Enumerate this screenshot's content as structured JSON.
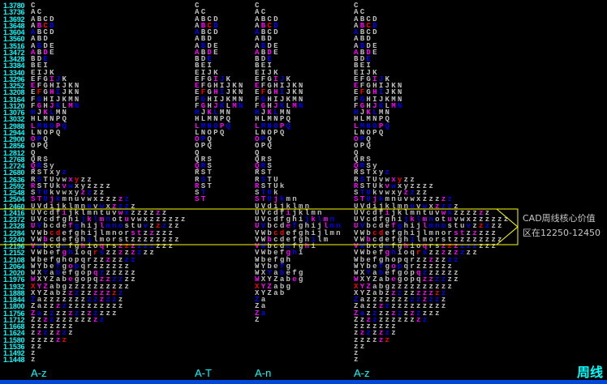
{
  "colors": {
    "background": "#000000",
    "price": "#00ffff",
    "letter": "#c0c0c0",
    "m": "#ff00ff",
    "b": "#0000ff",
    "r": "#ff0000",
    "highlight_box": "#ffff00",
    "bottom_bar": "#0048d8"
  },
  "annotation": {
    "line1": "CAD周线核心价值",
    "line2": "区在12250-12450"
  },
  "period_label": "周线",
  "chart_data": {
    "type": "market-profile",
    "price_levels": [
      "1.3780",
      "1.3736",
      "1.3692",
      "1.3648",
      "1.3604",
      "1.3560",
      "1.3516",
      "1.3472",
      "1.3428",
      "1.3384",
      "1.3340",
      "1.3296",
      "1.3252",
      "1.3208",
      "1.3164",
      "1.3120",
      "1.3076",
      "1.3032",
      "1.2988",
      "1.2944",
      "1.2900",
      "1.2856",
      "1.2812",
      "1.2768",
      "1.2724",
      "1.2680",
      "1.2636",
      "1.2592",
      "1.2548",
      "1.2504",
      "1.2460",
      "1.2416",
      "1.2372",
      "1.2328",
      "1.2284",
      "1.2240",
      "1.2196",
      "1.2152",
      "1.2108",
      "1.2064",
      "1.2020",
      "1.1976",
      "1.1932",
      "1.1888",
      "1.1844",
      "1.1800",
      "1.1756",
      "1.1712",
      "1.1668",
      "1.1624",
      "1.1580",
      "1.1536",
      "1.1492",
      "1.1448"
    ],
    "value_area_highlight": {
      "from": "1.2240",
      "to": "1.2416"
    },
    "profiles": [
      {
        "label": "A-z",
        "rows": [
          [
            "C",
            ""
          ],
          [
            "AC",
            ""
          ],
          [
            "ABCD",
            ""
          ],
          [
            "ABCD",
            ".mrb"
          ],
          [
            "ABCD",
            "b"
          ],
          [
            "ABD",
            ""
          ],
          [
            "ABDE",
            ".b"
          ],
          [
            "ABDE",
            "m.m"
          ],
          [
            "BDE",
            "..b"
          ],
          [
            "BEI",
            ""
          ],
          [
            "EIJK",
            ""
          ],
          [
            "EFGIJK",
            "...mb"
          ],
          [
            "EFGHIJKN",
            "m"
          ],
          [
            "EFGHIJKN",
            ".r.mb"
          ],
          [
            "FGHIJKMN",
            ".b"
          ],
          [
            "FGHJKLMN",
            ".m.mb.mb"
          ],
          [
            "HJKLMN",
            "b.mb"
          ],
          [
            "HLMNPQ",
            ""
          ],
          [
            "LMNOPQ",
            "mbbbmb"
          ],
          [
            "LNOPQ",
            ""
          ],
          [
            "OPQ",
            "mb"
          ],
          [
            "OPQ",
            ""
          ],
          [
            "Q",
            ""
          ],
          [
            "QRS",
            ""
          ],
          [
            "QRSy",
            "mb"
          ],
          [
            "RSTxyz",
            ".....b"
          ],
          [
            "RSTUvwxyzz",
            ".b....mr"
          ],
          [
            "RSTUkvwxyzzzz",
            "m....mb"
          ],
          [
            "STUkvwxyzzzz",
            ".bb.....mb"
          ],
          [
            "STUjkmnuvwxzzzzz",
            "mmbmb.........mb"
          ],
          [
            "UVdijklmnuvwxzzzz",
            ".........b.b.mbb"
          ],
          [
            "UVcdfijklmntuvwxzzzzzz",
            ".....m........mb....m"
          ],
          [
            "UVcdfghijklmnotuvwxzzzzzz",
            "........bmbmb..m"
          ],
          [
            "UVbcdefghijlmnostuvzzzzz",
            "mb....mb...mbbb...b.rb"
          ],
          [
            "VWbcdefghijlmnorstzzzzz",
            "...rr...........mm.m"
          ],
          [
            "VWbcdefghilmorstzzzzzzzz",
            "..m......b"
          ],
          [
            "VWbcdefghioqrszzzzzzzzz",
            "mb...b..m..m..mrmbbb"
          ],
          [
            "VWbefghioqrszzzzzzzz",
            ".....mb...rb..m.mb"
          ],
          [
            "Wbefghopqrzzzzzzz",
            "............m..bb"
          ],
          [
            "WYbefgopqrzzzzzz",
            "....b.mb"
          ],
          [
            "WXYabefgopqzzzzzz",
            "..b.b.....mb"
          ],
          [
            "WXYZabegopqzzzzzz",
            "m.....m....mmbb"
          ],
          [
            "XYZabgzzzzzzzzzz",
            "rmm"
          ],
          [
            "XYZabzzzzzzzzzz",
            "......mb..mmmrb"
          ],
          [
            "Zazzzzzzzzzzzzz",
            "b........bbmbb"
          ],
          [
            "Zazzzzzzzzzzzzz",
            "....mb"
          ],
          [
            "Zazzzzzzzzzzzz",
            "mb.b..mb.mb"
          ],
          [
            "Zzzzzzzzzzzz",
            "..mb......mb"
          ],
          [
            "zzzzzzz",
            ""
          ],
          [
            "zzzzzzz",
            ".mb.mb"
          ],
          [
            "zzzzzz",
            "....mr"
          ],
          [
            "zz",
            ""
          ],
          [
            "z",
            ""
          ],
          [
            "z",
            ""
          ]
        ]
      },
      {
        "label": "A-T",
        "rows": [
          [
            "C",
            ""
          ],
          [
            "AC",
            ""
          ],
          [
            "ABCD",
            ""
          ],
          [
            "ABCD",
            ".mrb"
          ],
          [
            "ABCD",
            "b"
          ],
          [
            "ABD",
            ""
          ],
          [
            "ABDE",
            ".b"
          ],
          [
            "ABDE",
            "m.m"
          ],
          [
            "BDE",
            "..b"
          ],
          [
            "BEI",
            ""
          ],
          [
            "EIJK",
            ""
          ],
          [
            "EFGIJK",
            "...mb"
          ],
          [
            "EFGHIJKN",
            "m"
          ],
          [
            "EFGHIJKN",
            ".r.mb"
          ],
          [
            "FGHIJKMN",
            ".b"
          ],
          [
            "FGHJKLMN",
            ".m.mb.mb"
          ],
          [
            "HJKLMN",
            "b.mb"
          ],
          [
            "HLMNPQ",
            ""
          ],
          [
            "LMNOPQ",
            "mbbbmb"
          ],
          [
            "LNOPQ",
            ""
          ],
          [
            "OPQ",
            "mb"
          ],
          [
            "OPQ",
            ""
          ],
          [
            "Q",
            ""
          ],
          [
            "QRS",
            ""
          ],
          [
            "QRS",
            "mb"
          ],
          [
            "RST",
            ""
          ],
          [
            "RST",
            ".b"
          ],
          [
            "RST",
            "m"
          ],
          [
            "ST",
            ".b"
          ],
          [
            "ST",
            "mm"
          ]
        ]
      },
      {
        "label": "A-n",
        "rows": [
          [
            "C",
            ""
          ],
          [
            "AC",
            ""
          ],
          [
            "ABCD",
            ""
          ],
          [
            "ABCD",
            ".mrb"
          ],
          [
            "ABCD",
            "b"
          ],
          [
            "ABD",
            ""
          ],
          [
            "ABDE",
            ".b"
          ],
          [
            "ABDE",
            "m.m"
          ],
          [
            "BDE",
            "..b"
          ],
          [
            "BEI",
            ""
          ],
          [
            "EIJK",
            ""
          ],
          [
            "EFGIJK",
            "...mb"
          ],
          [
            "EFGHIJKN",
            "m"
          ],
          [
            "EFGHIJKN",
            ".r.mb"
          ],
          [
            "FGHIJKMN",
            ".b"
          ],
          [
            "FGHJKLMN",
            ".m.mb.mb"
          ],
          [
            "HJKLMN",
            "b.mb"
          ],
          [
            "HLMNPQ",
            ""
          ],
          [
            "LMNOPQ",
            "mbbbmb"
          ],
          [
            "LNOPQ",
            ""
          ],
          [
            "OPQ",
            "mb"
          ],
          [
            "OPQ",
            ""
          ],
          [
            "Q",
            ""
          ],
          [
            "QRS",
            ""
          ],
          [
            "QRS",
            "mb"
          ],
          [
            "RST",
            ""
          ],
          [
            "RSTU",
            ".b"
          ],
          [
            "RSTUk",
            "m"
          ],
          [
            "STUk",
            ".bb"
          ],
          [
            "STUjkmn",
            "mmbmb"
          ],
          [
            "UVdijklmn",
            ""
          ],
          [
            "UVcdfijklmn",
            ".....m"
          ],
          [
            "UVcdfghijklmn",
            "........bmbmb"
          ],
          [
            "UVbcdefghijlmn",
            "mb...mb....mbb"
          ],
          [
            "VWbcdefghijlmn",
            "...rr"
          ],
          [
            "VWbcdefghilm",
            "..m......b"
          ],
          [
            "VWbcdefghi",
            "mb...b..m"
          ],
          [
            "VWbefghi",
            ".....mb"
          ],
          [
            "Wbefgh",
            ""
          ],
          [
            "WYbefg",
            "....b"
          ],
          [
            "WXYabefg",
            "..b.b"
          ],
          [
            "WXYZabeg",
            "m.....m"
          ],
          [
            "XYZabg",
            "rmm"
          ],
          [
            "XYZab",
            ""
          ],
          [
            "Za",
            "b"
          ],
          [
            "Za",
            ""
          ],
          [
            "Za",
            "mb"
          ],
          [
            "Z",
            ""
          ]
        ]
      },
      {
        "label": "A-z",
        "rows": [
          [
            "C",
            ""
          ],
          [
            "AC",
            ""
          ],
          [
            "ABCD",
            ""
          ],
          [
            "ABCD",
            ".mrb"
          ],
          [
            "ABCD",
            "b"
          ],
          [
            "ABD",
            ""
          ],
          [
            "ABDE",
            ".b"
          ],
          [
            "ABDE",
            "m.m"
          ],
          [
            "BDE",
            "..b"
          ],
          [
            "BEI",
            ""
          ],
          [
            "EIJK",
            ""
          ],
          [
            "EFGIJK",
            "...mb"
          ],
          [
            "EFGHIJKN",
            "m"
          ],
          [
            "EFGHIJKN",
            ".r.mb"
          ],
          [
            "FGHIJKMN",
            ".b"
          ],
          [
            "FGHJKLMN",
            ".m.mb.mb"
          ],
          [
            "HJKLMN",
            "b.mb"
          ],
          [
            "HLMNPQ",
            ""
          ],
          [
            "LMNOPQ",
            "mbbbmb"
          ],
          [
            "LNOPQ",
            ""
          ],
          [
            "OPQ",
            "mb"
          ],
          [
            "OPQ",
            ""
          ],
          [
            "Q",
            ""
          ],
          [
            "QRS",
            ""
          ],
          [
            "QRSy",
            "mb"
          ],
          [
            "RSTxyz",
            ".....b"
          ],
          [
            "RSTUvwxyzz",
            ".b....mr"
          ],
          [
            "RSTUkvwxyzzzz",
            "m....mb"
          ],
          [
            "STUkvwxyzzzz",
            ".bb.....mb"
          ],
          [
            "STUjkmnuvwxzzzzz",
            "mmbmb.........mb"
          ],
          [
            "UVdijklmnuvwxzzzz",
            ".........b.b.mbb"
          ],
          [
            "UVcdfijklmntuvwxzzzzzz",
            ".....m........mb....m"
          ],
          [
            "UVcdfghijklmnotuvwxzzzzzz",
            "........bmbmb..m"
          ],
          [
            "UVbcdefghijlmnostuvzzzzz",
            "mb....mb...mbbb...b.rb"
          ],
          [
            "VWbcdefghijlmnorstzzzzz",
            "...rr...........mm.m"
          ],
          [
            "VWbcdefghilmorstzzzzzzzz",
            "..m......b"
          ],
          [
            "VWbcdefghioqrszzzzzzzzz",
            "mb...b..m..m..mrmbbb"
          ],
          [
            "VWbefghioqrszzzzzzzz",
            ".....mb...rb..m.mb"
          ],
          [
            "Wbefghopqrzzzzzzz",
            "............m..bb"
          ],
          [
            "WYbefgopqrzzzzzz",
            "....b.mb"
          ],
          [
            "WXYabefgopqzzzzzz",
            "..b.b.....mb"
          ],
          [
            "WXYZabegopqzzzzzz",
            "m.....m....mmbb"
          ],
          [
            "XYZabgzzzzzzzzzz",
            "rmm"
          ],
          [
            "XYZabzzzzzzzzzz",
            "......mb..mmmrb"
          ],
          [
            "Zazzzzzzzzzzzzz",
            "b........bbmbb"
          ],
          [
            "Zazzzzzzzzzzzzz",
            "....mb"
          ],
          [
            "Zazzzzzzzzzzzz",
            "mb.b..mb.mb"
          ],
          [
            "Zzzzzzzzzzzz",
            "..mb......mb"
          ],
          [
            "zzzzzzz",
            ""
          ],
          [
            "zzzzzzz",
            ".mb.mb"
          ],
          [
            "zzzzzz",
            "....mr"
          ],
          [
            "zz",
            ""
          ],
          [
            "z",
            ""
          ],
          [
            "z",
            ""
          ]
        ]
      }
    ]
  }
}
